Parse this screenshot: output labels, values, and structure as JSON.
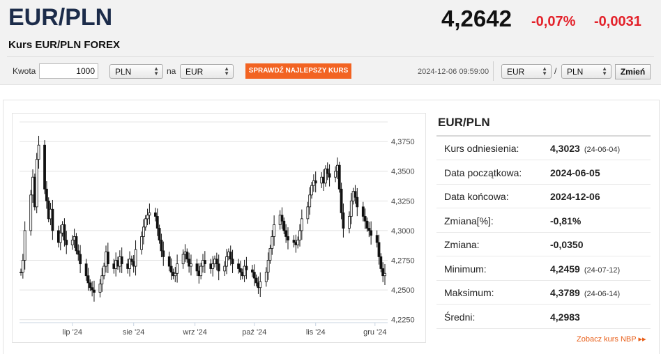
{
  "header": {
    "pair": "EUR/PLN",
    "subtitle": "Kurs EUR/PLN FOREX",
    "price": "4,2642",
    "change_pct": "-0,07%",
    "change_abs": "-0,0031",
    "colors": {
      "negative": "#e3212a",
      "title": "#1c2c4a"
    }
  },
  "converter": {
    "amount_label": "Kwota",
    "amount_value": "1000",
    "from_currency": "PLN",
    "to_label": "na",
    "to_currency": "EUR",
    "check_button": "SPRAWDŹ NAJLEPSZY KURS",
    "check_button_color": "#f26322"
  },
  "pair_selector": {
    "timestamp": "2024-12-06 09:59:00",
    "base": "EUR",
    "separator": "/",
    "quote": "PLN",
    "change_button": "Zmień"
  },
  "stats": {
    "title": "EUR/PLN",
    "rows": [
      {
        "label": "Kurs odniesienia:",
        "value": "4,3023",
        "date": "(24-06-04)"
      },
      {
        "label": "Data początkowa:",
        "value": "2024-06-05",
        "date": ""
      },
      {
        "label": "Data końcowa:",
        "value": "2024-12-06",
        "date": ""
      },
      {
        "label": "Zmiana[%]:",
        "value": "-0,81%",
        "date": ""
      },
      {
        "label": "Zmiana:",
        "value": "-0,0350",
        "date": ""
      },
      {
        "label": "Minimum:",
        "value": "4,2459",
        "date": "(24-07-12)"
      },
      {
        "label": "Maksimum:",
        "value": "4,3789",
        "date": "(24-06-14)"
      },
      {
        "label": "Średni:",
        "value": "4,2983",
        "date": ""
      }
    ],
    "nbp_link": "Zobacz kurs NBP",
    "link_color": "#e85d17"
  },
  "chart_data": {
    "type": "candlestick",
    "x_ticks": [
      "lip '24",
      "sie '24",
      "wrz '24",
      "paź '24",
      "lis '24",
      "gru '24"
    ],
    "y_ticks": [
      "4,3750",
      "4,3500",
      "4,3250",
      "4,3000",
      "4,2750",
      "4,2500",
      "4,2250"
    ],
    "ylim": [
      4.2225,
      4.3915
    ],
    "y_tick_values": [
      4.375,
      4.35,
      4.325,
      4.3,
      4.275,
      4.25,
      4.225
    ],
    "x_date_range": [
      "2024-06-05",
      "2024-12-06"
    ],
    "x_tick_dates": [
      "2024-07-01",
      "2024-08-01",
      "2024-09-01",
      "2024-10-01",
      "2024-11-01",
      "2024-12-01"
    ],
    "grid": true,
    "legend": "none",
    "close_series": [
      {
        "date": "2024-06-05",
        "close": 4.265
      },
      {
        "date": "2024-06-06",
        "close": 4.275
      },
      {
        "date": "2024-06-07",
        "close": 4.3
      },
      {
        "date": "2024-06-10",
        "close": 4.33
      },
      {
        "date": "2024-06-11",
        "close": 4.345
      },
      {
        "date": "2024-06-12",
        "close": 4.32
      },
      {
        "date": "2024-06-13",
        "close": 4.36
      },
      {
        "date": "2024-06-14",
        "close": 4.372
      },
      {
        "date": "2024-06-17",
        "close": 4.335
      },
      {
        "date": "2024-06-18",
        "close": 4.325
      },
      {
        "date": "2024-06-19",
        "close": 4.31
      },
      {
        "date": "2024-06-20",
        "close": 4.318
      },
      {
        "date": "2024-06-21",
        "close": 4.3
      },
      {
        "date": "2024-06-24",
        "close": 4.29
      },
      {
        "date": "2024-06-25",
        "close": 4.298
      },
      {
        "date": "2024-06-26",
        "close": 4.305
      },
      {
        "date": "2024-06-27",
        "close": 4.292
      },
      {
        "date": "2024-06-28",
        "close": 4.288
      },
      {
        "date": "2024-07-01",
        "close": 4.292
      },
      {
        "date": "2024-07-02",
        "close": 4.295
      },
      {
        "date": "2024-07-03",
        "close": 4.283
      },
      {
        "date": "2024-07-04",
        "close": 4.28
      },
      {
        "date": "2024-07-05",
        "close": 4.272
      },
      {
        "date": "2024-07-08",
        "close": 4.262
      },
      {
        "date": "2024-07-09",
        "close": 4.256
      },
      {
        "date": "2024-07-10",
        "close": 4.252
      },
      {
        "date": "2024-07-11",
        "close": 4.25
      },
      {
        "date": "2024-07-12",
        "close": 4.248
      },
      {
        "date": "2024-07-15",
        "close": 4.255
      },
      {
        "date": "2024-07-16",
        "close": 4.262
      },
      {
        "date": "2024-07-17",
        "close": 4.27
      },
      {
        "date": "2024-07-18",
        "close": 4.282
      },
      {
        "date": "2024-07-19",
        "close": 4.272
      },
      {
        "date": "2024-07-22",
        "close": 4.268
      },
      {
        "date": "2024-07-23",
        "close": 4.275
      },
      {
        "date": "2024-07-24",
        "close": 4.27
      },
      {
        "date": "2024-07-25",
        "close": 4.278
      },
      {
        "date": "2024-07-26",
        "close": 4.272
      },
      {
        "date": "2024-07-29",
        "close": 4.268
      },
      {
        "date": "2024-07-30",
        "close": 4.276
      },
      {
        "date": "2024-07-31",
        "close": 4.274
      },
      {
        "date": "2024-08-01",
        "close": 4.27
      },
      {
        "date": "2024-08-02",
        "close": 4.284
      },
      {
        "date": "2024-08-05",
        "close": 4.295
      },
      {
        "date": "2024-08-06",
        "close": 4.303
      },
      {
        "date": "2024-08-07",
        "close": 4.31
      },
      {
        "date": "2024-08-08",
        "close": 4.313
      },
      {
        "date": "2024-08-09",
        "close": 4.315
      },
      {
        "date": "2024-08-12",
        "close": 4.312
      },
      {
        "date": "2024-08-13",
        "close": 4.302
      },
      {
        "date": "2024-08-14",
        "close": 4.292
      },
      {
        "date": "2024-08-15",
        "close": 4.283
      },
      {
        "date": "2024-08-16",
        "close": 4.278
      },
      {
        "date": "2024-08-19",
        "close": 4.27
      },
      {
        "date": "2024-08-20",
        "close": 4.265
      },
      {
        "date": "2024-08-21",
        "close": 4.262
      },
      {
        "date": "2024-08-22",
        "close": 4.264
      },
      {
        "date": "2024-08-23",
        "close": 4.272
      },
      {
        "date": "2024-08-26",
        "close": 4.28
      },
      {
        "date": "2024-08-27",
        "close": 4.282
      },
      {
        "date": "2024-08-28",
        "close": 4.276
      },
      {
        "date": "2024-08-29",
        "close": 4.27
      },
      {
        "date": "2024-08-30",
        "close": 4.272
      },
      {
        "date": "2024-09-02",
        "close": 4.266
      },
      {
        "date": "2024-09-03",
        "close": 4.262
      },
      {
        "date": "2024-09-04",
        "close": 4.27
      },
      {
        "date": "2024-09-05",
        "close": 4.275
      },
      {
        "date": "2024-09-06",
        "close": 4.272
      },
      {
        "date": "2024-09-09",
        "close": 4.268
      },
      {
        "date": "2024-09-10",
        "close": 4.272
      },
      {
        "date": "2024-09-11",
        "close": 4.276
      },
      {
        "date": "2024-09-12",
        "close": 4.272
      },
      {
        "date": "2024-09-13",
        "close": 4.266
      },
      {
        "date": "2024-09-16",
        "close": 4.27
      },
      {
        "date": "2024-09-17",
        "close": 4.278
      },
      {
        "date": "2024-09-18",
        "close": 4.282
      },
      {
        "date": "2024-09-19",
        "close": 4.276
      },
      {
        "date": "2024-09-20",
        "close": 4.272
      },
      {
        "date": "2024-09-23",
        "close": 4.268
      },
      {
        "date": "2024-09-24",
        "close": 4.265
      },
      {
        "date": "2024-09-25",
        "close": 4.262
      },
      {
        "date": "2024-09-26",
        "close": 4.27
      },
      {
        "date": "2024-09-27",
        "close": 4.267
      },
      {
        "date": "2024-09-30",
        "close": 4.265
      },
      {
        "date": "2024-10-01",
        "close": 4.26
      },
      {
        "date": "2024-10-02",
        "close": 4.256
      },
      {
        "date": "2024-10-03",
        "close": 4.252
      },
      {
        "date": "2024-10-04",
        "close": 4.257
      },
      {
        "date": "2024-10-07",
        "close": 4.265
      },
      {
        "date": "2024-10-08",
        "close": 4.275
      },
      {
        "date": "2024-10-09",
        "close": 4.285
      },
      {
        "date": "2024-10-10",
        "close": 4.295
      },
      {
        "date": "2024-10-11",
        "close": 4.305
      },
      {
        "date": "2024-10-14",
        "close": 4.313
      },
      {
        "date": "2024-10-15",
        "close": 4.308
      },
      {
        "date": "2024-10-16",
        "close": 4.3
      },
      {
        "date": "2024-10-17",
        "close": 4.295
      },
      {
        "date": "2024-10-18",
        "close": 4.292
      },
      {
        "date": "2024-10-21",
        "close": 4.29
      },
      {
        "date": "2024-10-22",
        "close": 4.288
      },
      {
        "date": "2024-10-23",
        "close": 4.292
      },
      {
        "date": "2024-10-24",
        "close": 4.3
      },
      {
        "date": "2024-10-25",
        "close": 4.31
      },
      {
        "date": "2024-10-28",
        "close": 4.32
      },
      {
        "date": "2024-10-29",
        "close": 4.33
      },
      {
        "date": "2024-10-30",
        "close": 4.338
      },
      {
        "date": "2024-10-31",
        "close": 4.342
      },
      {
        "date": "2024-11-01",
        "close": 4.34
      },
      {
        "date": "2024-11-04",
        "close": 4.345
      },
      {
        "date": "2024-11-05",
        "close": 4.34
      },
      {
        "date": "2024-11-06",
        "close": 4.352
      },
      {
        "date": "2024-11-07",
        "close": 4.348
      },
      {
        "date": "2024-11-08",
        "close": 4.345
      },
      {
        "date": "2024-11-11",
        "close": 4.35
      },
      {
        "date": "2024-11-12",
        "close": 4.355
      },
      {
        "date": "2024-11-13",
        "close": 4.335
      },
      {
        "date": "2024-11-14",
        "close": 4.315
      },
      {
        "date": "2024-11-15",
        "close": 4.302
      },
      {
        "date": "2024-11-18",
        "close": 4.312
      },
      {
        "date": "2024-11-19",
        "close": 4.325
      },
      {
        "date": "2024-11-20",
        "close": 4.333
      },
      {
        "date": "2024-11-21",
        "close": 4.328
      },
      {
        "date": "2024-11-22",
        "close": 4.32
      },
      {
        "date": "2024-11-25",
        "close": 4.312
      },
      {
        "date": "2024-11-26",
        "close": 4.308
      },
      {
        "date": "2024-11-27",
        "close": 4.302
      },
      {
        "date": "2024-11-28",
        "close": 4.3
      },
      {
        "date": "2024-11-29",
        "close": 4.296
      },
      {
        "date": "2024-12-02",
        "close": 4.29
      },
      {
        "date": "2024-12-03",
        "close": 4.278
      },
      {
        "date": "2024-12-04",
        "close": 4.268
      },
      {
        "date": "2024-12-05",
        "close": 4.262
      },
      {
        "date": "2024-12-06",
        "close": 4.264
      }
    ]
  }
}
